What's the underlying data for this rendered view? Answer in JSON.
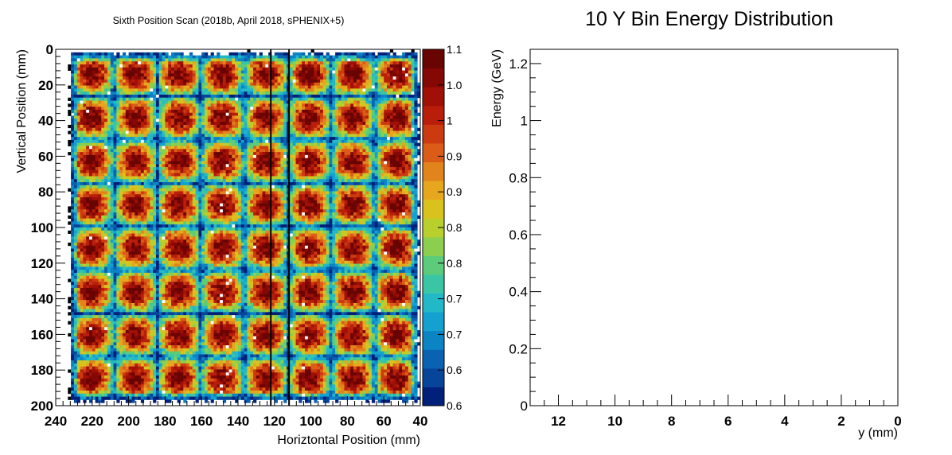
{
  "chart_data": [
    {
      "type": "heatmap",
      "title": "Sixth Position Scan (2018b, April 2018, sPHENIX+5)",
      "xlabel": "Horiztontal Position (mm)",
      "ylabel": "Vertical Position (mm)",
      "xlim": [
        240,
        40
      ],
      "ylim": [
        200,
        0
      ],
      "x_ticks": [
        "240",
        "220",
        "200",
        "180",
        "160",
        "140",
        "120",
        "100",
        "80",
        "60",
        "40"
      ],
      "y_ticks": [
        "0",
        "20",
        "40",
        "60",
        "80",
        "100",
        "120",
        "140",
        "160",
        "180",
        "200"
      ],
      "zlim": [
        0.6,
        1.1
      ],
      "colorbar_ticks": [
        "1.1",
        "1.0",
        "1",
        "0.9",
        "0.9",
        "0.8",
        "0.8",
        "0.7",
        "0.7",
        "0.6",
        "0.6"
      ],
      "tower_grid": {
        "columns": 8,
        "rows": 8
      },
      "vertical_lines_x": [
        122,
        112
      ],
      "colors": [
        "#00207a",
        "#07459a",
        "#0a63b2",
        "#0c84c4",
        "#14a1d0",
        "#23b8c8",
        "#3ac6a5",
        "#5ccc7a",
        "#8ccf4e",
        "#b9cf2c",
        "#dac21e",
        "#e6a61e",
        "#e2841c",
        "#da5c16",
        "#cc3a10",
        "#b81e0a",
        "#a11006",
        "#860804",
        "#680402"
      ]
    },
    {
      "type": "line",
      "title": "10 Y Bin Energy Distribution",
      "xlabel": "y (mm)",
      "ylabel": "Energy (GeV)",
      "xlim": [
        13,
        0
      ],
      "ylim": [
        0,
        1.25
      ],
      "x_ticks": [
        "12",
        "10",
        "8",
        "6",
        "4",
        "2",
        "0"
      ],
      "y_ticks": [
        "0",
        "0.2",
        "0.4",
        "0.6",
        "0.8",
        "1",
        "1.2"
      ],
      "series": []
    }
  ]
}
